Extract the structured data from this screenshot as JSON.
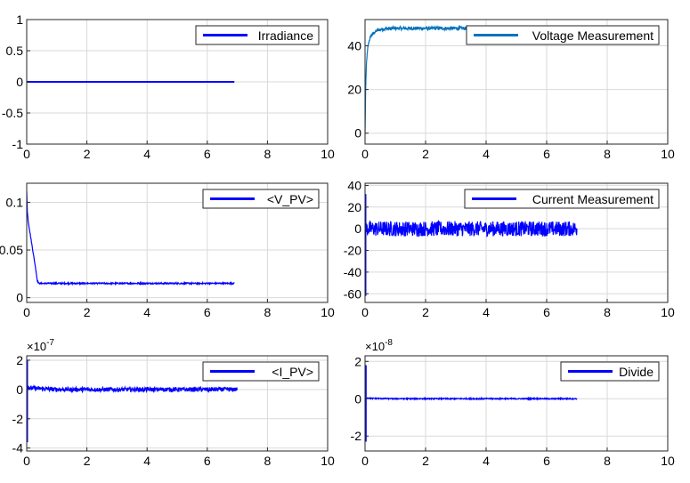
{
  "figure": {
    "background": "#ffffff",
    "grid_color": "#d9d9d9",
    "axis_color": "#262626",
    "series_colors": {
      "blue": "#0000ff",
      "steelblue": "#0072bd"
    }
  },
  "chart_data": [
    {
      "id": "irradiance",
      "type": "line",
      "xlim": [
        0,
        10
      ],
      "ylim": [
        -1,
        1
      ],
      "xticks": [
        0,
        2,
        4,
        6,
        8,
        10
      ],
      "xtick_labels": [
        "0",
        "2",
        "4",
        "6",
        "8",
        "10"
      ],
      "yticks": [
        -1,
        -0.5,
        0,
        0.5,
        1
      ],
      "ytick_labels": [
        "-1",
        "-0.5",
        "0",
        "0.5",
        "1"
      ],
      "exponent_label": "",
      "grid": true,
      "legend": {
        "label": "Irradiance",
        "position": "top-right"
      },
      "series": [
        {
          "name": "Irradiance",
          "color": "#0000ff",
          "x": [
            0,
            6.9
          ],
          "y": [
            0,
            0
          ]
        }
      ]
    },
    {
      "id": "voltage",
      "type": "line",
      "xlim": [
        0,
        10
      ],
      "ylim": [
        -5,
        52
      ],
      "xticks": [
        0,
        2,
        4,
        6,
        8,
        10
      ],
      "xtick_labels": [
        "0",
        "2",
        "4",
        "6",
        "8",
        "10"
      ],
      "yticks": [
        0,
        20,
        40
      ],
      "ytick_labels": [
        "0",
        "20",
        "40"
      ],
      "exponent_label": "",
      "grid": true,
      "legend": {
        "label": "Voltage Measurement",
        "position": "top-right"
      },
      "series": [
        {
          "name": "Voltage Measurement",
          "color": "#0072bd",
          "x": [
            0,
            0.02,
            0.05,
            0.1,
            0.15,
            0.2,
            0.3,
            0.4,
            0.5,
            0.7,
            1.0,
            2.0,
            3.0,
            3.5
          ],
          "y": [
            0,
            20,
            33,
            40,
            43,
            44.5,
            46,
            47,
            47.5,
            47.8,
            48,
            48,
            48,
            48
          ],
          "noise_amp": 0.8
        }
      ]
    },
    {
      "id": "v_pv",
      "type": "line",
      "xlim": [
        0,
        10
      ],
      "ylim": [
        -0.005,
        0.12
      ],
      "xticks": [
        0,
        2,
        4,
        6,
        8,
        10
      ],
      "xtick_labels": [
        "0",
        "2",
        "4",
        "6",
        "8",
        "10"
      ],
      "yticks": [
        0,
        0.05,
        0.1
      ],
      "ytick_labels": [
        "0",
        "0.05",
        "0.1"
      ],
      "exponent_label": "",
      "grid": true,
      "legend": {
        "label": "<V_PV>",
        "position": "top-right"
      },
      "series": [
        {
          "name": "<V_PV>",
          "color": "#0000ff",
          "x": [
            0,
            0.02,
            0.05,
            0.1,
            0.2,
            0.3,
            0.35,
            0.4,
            1.0,
            3.0,
            5.0,
            6.9
          ],
          "y": [
            0.112,
            0.09,
            0.08,
            0.07,
            0.05,
            0.03,
            0.018,
            0.015,
            0.015,
            0.015,
            0.015,
            0.015
          ],
          "noise_amp": 0.0007
        }
      ]
    },
    {
      "id": "current",
      "type": "line",
      "xlim": [
        0,
        10
      ],
      "ylim": [
        -68,
        42
      ],
      "xticks": [
        0,
        2,
        4,
        6,
        8,
        10
      ],
      "xtick_labels": [
        "0",
        "2",
        "4",
        "6",
        "8",
        "10"
      ],
      "yticks": [
        -60,
        -40,
        -20,
        0,
        20,
        40
      ],
      "ytick_labels": [
        "-60",
        "-40",
        "-20",
        "0",
        "20",
        "40"
      ],
      "exponent_label": "",
      "grid": true,
      "legend": {
        "label": "Current Measurement",
        "position": "top-right"
      },
      "series": [
        {
          "name": "Current Measurement",
          "color": "#0000ff",
          "x": [
            0,
            0.05,
            0.1,
            1.0,
            3.0,
            5.0,
            7.0
          ],
          "y": [
            0,
            0,
            0,
            0,
            0,
            0,
            0
          ],
          "noise_amp": 7,
          "spike": {
            "x": 0.02,
            "y_min": -62,
            "y_max": 32
          }
        }
      ]
    },
    {
      "id": "i_pv",
      "type": "line",
      "xlim": [
        0,
        10
      ],
      "ylim": [
        -4.2e-07,
        2.3e-07
      ],
      "xticks": [
        0,
        2,
        4,
        6,
        8,
        10
      ],
      "xtick_labels": [
        "0",
        "2",
        "4",
        "6",
        "8",
        "10"
      ],
      "yticks": [
        -4e-07,
        -2e-07,
        0,
        2e-07
      ],
      "ytick_labels": [
        "-4",
        "-2",
        "0",
        "2"
      ],
      "exponent_label": "×10",
      "exponent_power": "-7",
      "grid": true,
      "legend": {
        "label": "<I_PV>",
        "position": "top-right"
      },
      "series": [
        {
          "name": "<I_PV>",
          "color": "#0000ff",
          "x": [
            0,
            0.05,
            0.1,
            1.0,
            3.0,
            5.0,
            7.0
          ],
          "y": [
            0,
            2e-08,
            1e-08,
            0,
            0,
            0,
            0
          ],
          "noise_amp": 1.5e-08,
          "spike": {
            "x": 0.02,
            "y_min": -3.6e-07,
            "y_max": 2e-07
          }
        }
      ]
    },
    {
      "id": "divide",
      "type": "line",
      "xlim": [
        0,
        10
      ],
      "ylim": [
        -2.8e-08,
        2.3e-08
      ],
      "xticks": [
        0,
        2,
        4,
        6,
        8,
        10
      ],
      "xtick_labels": [
        "0",
        "2",
        "4",
        "6",
        "8",
        "10"
      ],
      "yticks": [
        -2e-08,
        0,
        2e-08
      ],
      "ytick_labels": [
        "-2",
        "0",
        "2"
      ],
      "exponent_label": "×10",
      "exponent_power": "-8",
      "grid": true,
      "legend": {
        "label": "Divide",
        "position": "top-right"
      },
      "series": [
        {
          "name": "Divide",
          "color": "#0000ff",
          "x": [
            0,
            0.1,
            0.2,
            1.0,
            3.0,
            5.0,
            7.0
          ],
          "y": [
            0,
            5e-10,
            2e-10,
            0,
            0,
            0,
            0
          ],
          "noise_amp": 3e-10,
          "spike": {
            "x": 0.03,
            "y_min": -2.3e-08,
            "y_max": 1.8e-08
          }
        }
      ]
    }
  ]
}
